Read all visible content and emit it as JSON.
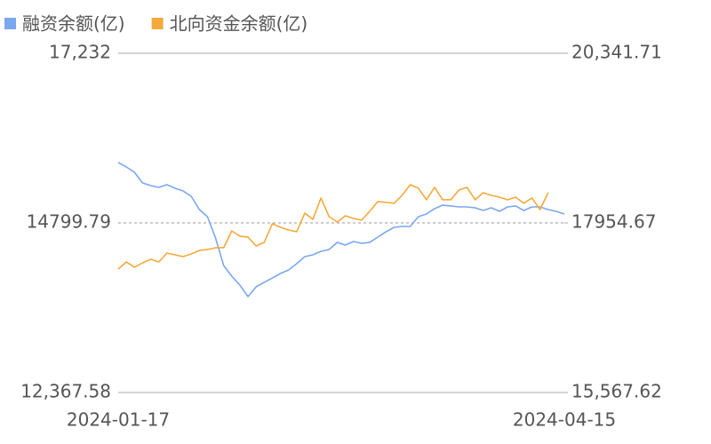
{
  "chart_data": {
    "type": "line",
    "categories": [
      "2024-01-17",
      null,
      null,
      null,
      null,
      null,
      null,
      null,
      null,
      null,
      null,
      null,
      null,
      null,
      null,
      null,
      null,
      null,
      null,
      null,
      null,
      null,
      null,
      null,
      null,
      null,
      null,
      null,
      null,
      null,
      null,
      null,
      null,
      null,
      null,
      null,
      null,
      null,
      null,
      null,
      null,
      null,
      null,
      null,
      null,
      null,
      null,
      null,
      null,
      null,
      null,
      null,
      null,
      null,
      null,
      "2024-04-15"
    ],
    "series": [
      {
        "name": "融资余额(亿)",
        "color": "#7ba7ee",
        "axis": "y",
        "values": [
          15666,
          15602,
          15526,
          15373,
          15335,
          15309,
          15347,
          15296,
          15258,
          15182,
          14991,
          14889,
          14583,
          14189,
          14036,
          13908,
          13743,
          13883,
          13947,
          14010,
          14074,
          14125,
          14214,
          14316,
          14341,
          14392,
          14418,
          14520,
          14481,
          14532,
          14507,
          14520,
          14596,
          14672,
          14736,
          14749,
          14749,
          14889,
          14927,
          15004,
          15054,
          15042,
          15029,
          15029,
          15016,
          14978,
          15016,
          14965,
          15029,
          15042,
          14978,
          15029,
          15029,
          14991,
          14965,
          14927
        ]
      },
      {
        "name": "北向资金余额(亿)",
        "color": "#f5a93b",
        "axis": "y2",
        "values": [
          17305,
          17405,
          17330,
          17392,
          17442,
          17405,
          17530,
          17505,
          17480,
          17517,
          17567,
          17580,
          17605,
          17605,
          17842,
          17767,
          17755,
          17630,
          17680,
          17942,
          17892,
          17855,
          17830,
          18092,
          18005,
          18305,
          18042,
          17967,
          18055,
          18017,
          17992,
          18117,
          18255,
          18242,
          18230,
          18342,
          18492,
          18442,
          18280,
          18455,
          18280,
          18280,
          18417,
          18455,
          18280,
          18380,
          18342,
          18317,
          18280,
          18317,
          18230,
          18305,
          18142,
          18380,
          null,
          null
        ]
      }
    ],
    "ylim": [
      12367.58,
      17232
    ],
    "yticks": [
      {
        "value": 12367.58,
        "label": "12,367.58"
      },
      14799.79,
      {
        "value": 17232,
        "label": "17,232"
      }
    ],
    "y2lim": [
      15567.62,
      20341.71
    ],
    "y2ticks": [
      {
        "value": 15567.62,
        "label": "15,567.62"
      },
      17954.67,
      {
        "value": 20341.71,
        "label": "20,341.71"
      }
    ],
    "grid": true,
    "legend": "top-left"
  }
}
